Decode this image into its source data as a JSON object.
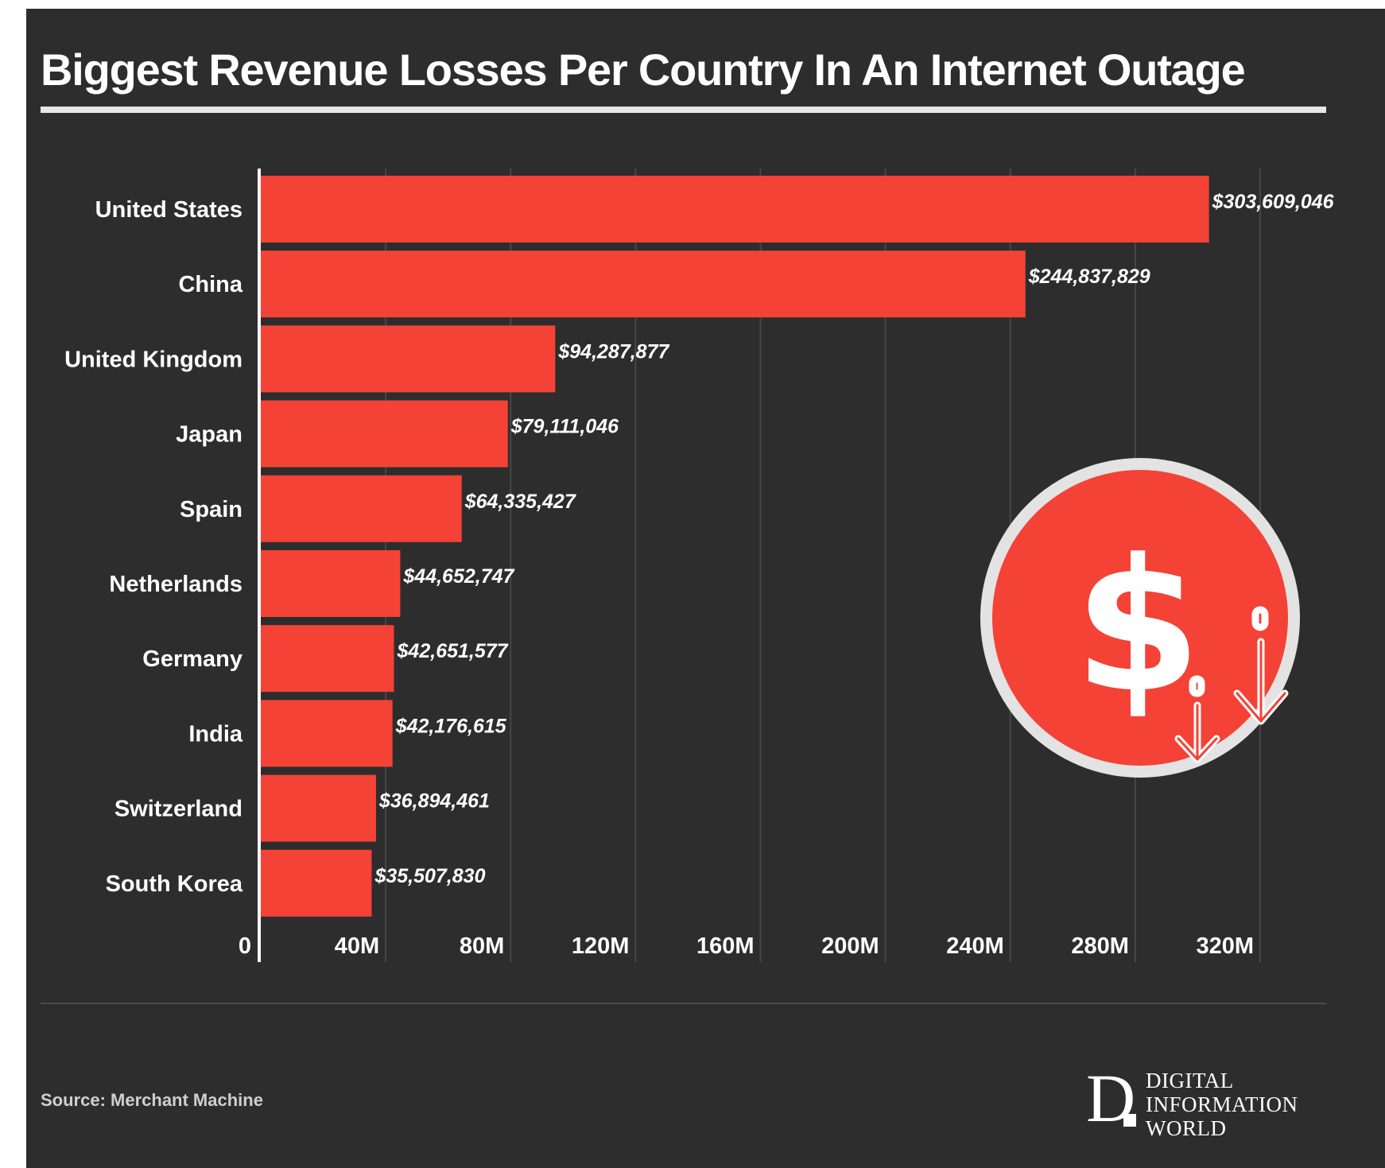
{
  "title": "Biggest Revenue Losses Per Country In An Internet Outage",
  "source": "Source: Merchant Machine",
  "logo": {
    "letter": "D",
    "lines": [
      "DIGITAL",
      "INFORMATION",
      "WORLD"
    ]
  },
  "icon": "dollar-coin-down-arrows-icon",
  "colors": {
    "background": "#2d2d2d",
    "bar": "#f44236",
    "text": "#ffffff"
  },
  "chart_data": {
    "type": "bar",
    "orientation": "horizontal",
    "categories": [
      "United States",
      "China",
      "United Kingdom",
      "Japan",
      "Spain",
      "Netherlands",
      "Germany",
      "India",
      "Switzerland",
      "South Korea"
    ],
    "values": [
      303609046,
      244837829,
      94287877,
      79111046,
      64335427,
      44652747,
      42651577,
      42176615,
      36894461,
      35507830
    ],
    "value_labels": [
      "$303,609,046",
      "$244,837,829",
      "$94,287,877",
      "$79,111,046",
      "$64,335,427",
      "$44,652,747",
      "$42,651,577",
      "$42,176,615",
      "$36,894,461",
      "$35,507,830"
    ],
    "x_ticks": [
      0,
      40000000,
      80000000,
      120000000,
      160000000,
      200000000,
      240000000,
      280000000,
      320000000
    ],
    "x_tick_labels": [
      "0",
      "40M",
      "80M",
      "120M",
      "160M",
      "200M",
      "240M",
      "280M",
      "320M"
    ],
    "xlim": [
      0,
      320000000
    ],
    "xlabel": "",
    "ylabel": "",
    "grid": true
  }
}
